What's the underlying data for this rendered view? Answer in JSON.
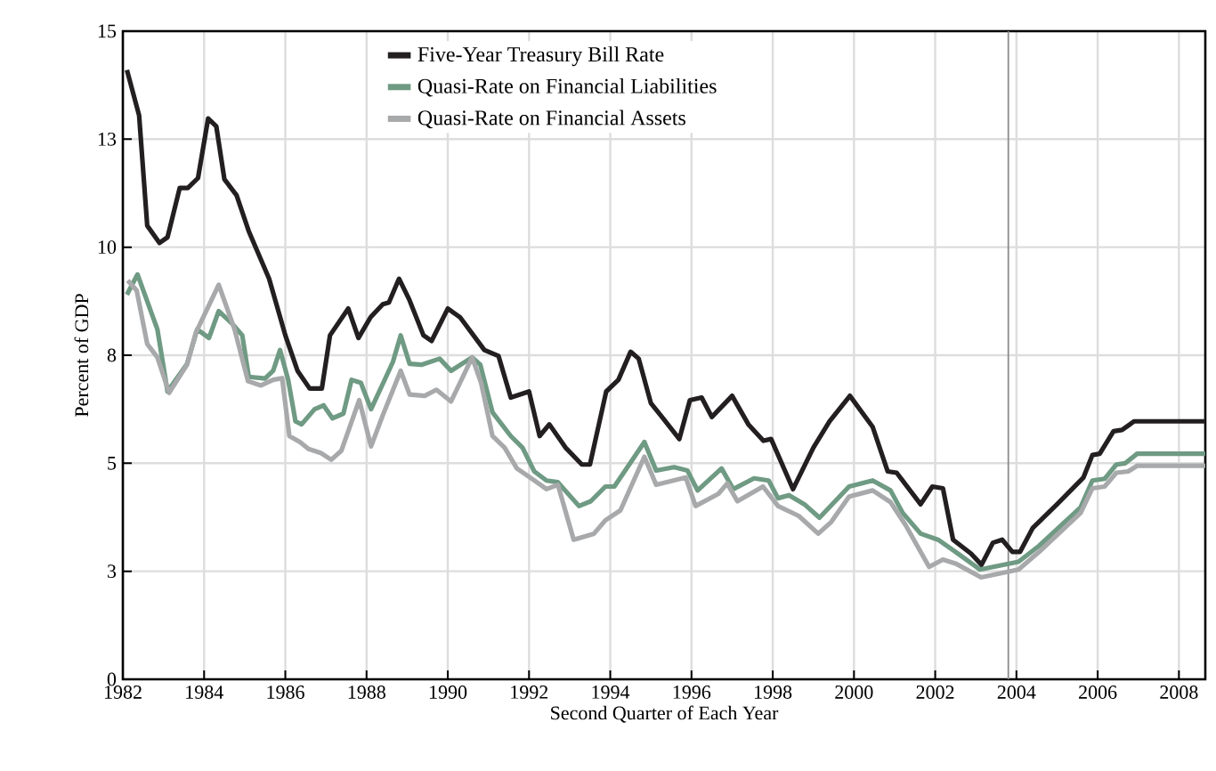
{
  "chart_data": {
    "type": "line",
    "xlabel": "Second Quarter of Each Year",
    "ylabel": "Percent of GDP",
    "xlim": [
      1982,
      2008.65
    ],
    "ylim": [
      0,
      15
    ],
    "xticks": [
      1982,
      1984,
      1986,
      1988,
      1990,
      1992,
      1994,
      1996,
      1998,
      2000,
      2002,
      2004,
      2006,
      2008
    ],
    "yticks": [
      0,
      {
        "value": 2.5,
        "label": "3"
      },
      5,
      {
        "value": 7.5,
        "label": "8"
      },
      10,
      {
        "value": 12.5,
        "label": "13"
      },
      15
    ],
    "grid": true,
    "legend": "top",
    "marker": "none",
    "line_style": "solid",
    "ref_lines": [
      {
        "axis": "x",
        "value": 2003.8,
        "label": null,
        "color": "#8c8c8c"
      }
    ],
    "series": [
      {
        "name": "Five-Year Treasury Bill Rate",
        "color": "#231f20",
        "x": [
          1982.1,
          1982.4,
          1982.6,
          1982.9,
          1983.1,
          1983.4,
          1983.6,
          1983.85,
          1984.1,
          1984.3,
          1984.5,
          1984.8,
          1985.1,
          1985.6,
          1986.0,
          1986.3,
          1986.6,
          1986.9,
          1987.1,
          1987.55,
          1987.8,
          1988.1,
          1988.4,
          1988.55,
          1988.8,
          1989.05,
          1989.4,
          1989.6,
          1990.0,
          1990.3,
          1990.9,
          1991.25,
          1991.55,
          1992.0,
          1992.26,
          1992.5,
          1992.9,
          1993.3,
          1993.5,
          1993.9,
          1994.2,
          1994.5,
          1994.7,
          1995.0,
          1995.3,
          1995.7,
          1995.96,
          1996.25,
          1996.5,
          1997.0,
          1997.4,
          1997.77,
          1997.96,
          1998.5,
          1999.0,
          1999.4,
          1999.9,
          2000.46,
          2000.83,
          2001.05,
          2001.64,
          2001.93,
          2002.19,
          2002.44,
          2002.88,
          2003.14,
          2003.42,
          2003.65,
          2003.9,
          2004.09,
          2004.4,
          2005.0,
          2005.65,
          2005.87,
          2006.05,
          2006.39,
          2006.6,
          2006.9,
          2008.65
        ],
        "values": [
          14.1,
          13.05,
          10.5,
          10.1,
          10.23,
          11.37,
          11.37,
          11.6,
          12.98,
          12.8,
          11.57,
          11.2,
          10.37,
          9.27,
          7.96,
          7.14,
          6.73,
          6.73,
          7.96,
          8.58,
          7.9,
          8.38,
          8.68,
          8.72,
          9.27,
          8.79,
          7.96,
          7.83,
          8.58,
          8.38,
          7.62,
          7.48,
          6.52,
          6.66,
          5.63,
          5.9,
          5.36,
          4.97,
          4.97,
          6.66,
          6.93,
          7.58,
          7.42,
          6.39,
          6.04,
          5.56,
          6.46,
          6.52,
          6.07,
          6.56,
          5.9,
          5.52,
          5.56,
          4.4,
          5.36,
          5.97,
          6.56,
          5.84,
          4.81,
          4.78,
          4.05,
          4.46,
          4.42,
          3.23,
          2.91,
          2.65,
          3.16,
          3.23,
          2.95,
          2.95,
          3.5,
          4.05,
          4.67,
          5.19,
          5.22,
          5.74,
          5.77,
          5.97,
          5.97
        ]
      },
      {
        "name": "Quasi-Rate on Financial Liabilities",
        "color": "#6f9a83",
        "x": [
          1982.1,
          1982.36,
          1982.85,
          1983.1,
          1983.58,
          1983.83,
          1984.12,
          1984.36,
          1984.68,
          1984.94,
          1985.1,
          1985.5,
          1985.7,
          1985.87,
          1986.07,
          1986.25,
          1986.4,
          1986.72,
          1986.94,
          1987.16,
          1987.43,
          1987.63,
          1987.86,
          1988.11,
          1988.48,
          1988.65,
          1988.84,
          1989.06,
          1989.35,
          1989.8,
          1990.08,
          1990.6,
          1990.8,
          1991.1,
          1991.55,
          1991.84,
          1992.13,
          1992.43,
          1992.71,
          1993.23,
          1993.52,
          1993.88,
          1994.1,
          1994.84,
          1995.13,
          1995.57,
          1995.9,
          1996.15,
          1996.74,
          1997.03,
          1997.54,
          1997.9,
          1998.13,
          1998.4,
          1998.78,
          1999.15,
          1999.88,
          2000.46,
          2000.9,
          2001.2,
          2001.64,
          2002.07,
          2002.5,
          2003.1,
          2004.05,
          2004.56,
          2005.58,
          2005.87,
          2006.17,
          2006.46,
          2006.68,
          2006.97,
          2008.65
        ],
        "values": [
          8.9,
          9.37,
          8.1,
          6.66,
          7.3,
          8.1,
          7.9,
          8.52,
          8.24,
          7.96,
          7.0,
          6.96,
          7.14,
          7.62,
          6.93,
          5.97,
          5.9,
          6.25,
          6.34,
          6.04,
          6.15,
          6.93,
          6.86,
          6.25,
          7.0,
          7.35,
          7.96,
          7.3,
          7.28,
          7.42,
          7.14,
          7.45,
          7.28,
          6.18,
          5.63,
          5.36,
          4.81,
          4.6,
          4.56,
          4.01,
          4.12,
          4.46,
          4.46,
          5.49,
          4.83,
          4.91,
          4.83,
          4.37,
          4.88,
          4.4,
          4.65,
          4.6,
          4.19,
          4.26,
          4.05,
          3.74,
          4.46,
          4.6,
          4.37,
          3.85,
          3.37,
          3.23,
          2.95,
          2.54,
          2.72,
          3.09,
          3.98,
          4.6,
          4.64,
          4.97,
          5.0,
          5.22,
          5.22
        ]
      },
      {
        "name": "Quasi-Rate on Financial Assets",
        "color": "#a8a9ab",
        "x": [
          1982.12,
          1982.34,
          1982.6,
          1982.85,
          1983.14,
          1983.58,
          1983.8,
          1984.36,
          1984.75,
          1985.08,
          1985.4,
          1985.7,
          1985.92,
          1986.1,
          1986.36,
          1986.57,
          1986.87,
          1987.13,
          1987.38,
          1987.82,
          1988.11,
          1988.4,
          1988.84,
          1989.06,
          1989.43,
          1989.72,
          1990.08,
          1990.6,
          1990.82,
          1991.1,
          1991.4,
          1991.7,
          1992.13,
          1992.43,
          1992.71,
          1993.1,
          1993.6,
          1993.88,
          1994.25,
          1994.84,
          1995.13,
          1995.86,
          1996.1,
          1996.66,
          1996.88,
          1997.13,
          1997.76,
          1998.13,
          1998.64,
          1999.12,
          1999.44,
          1999.88,
          2000.46,
          2000.9,
          2001.27,
          2001.85,
          2002.19,
          2002.5,
          2003.13,
          2004.05,
          2004.56,
          2005.58,
          2005.87,
          2006.17,
          2006.46,
          2006.75,
          2006.97,
          2008.65
        ],
        "values": [
          9.23,
          9.0,
          7.76,
          7.45,
          6.63,
          7.28,
          8.03,
          9.13,
          8.1,
          6.9,
          6.8,
          6.93,
          6.97,
          5.63,
          5.49,
          5.33,
          5.24,
          5.08,
          5.29,
          6.46,
          5.39,
          6.11,
          7.14,
          6.59,
          6.56,
          6.7,
          6.43,
          7.45,
          6.86,
          5.63,
          5.36,
          4.88,
          4.6,
          4.4,
          4.5,
          3.23,
          3.37,
          3.68,
          3.91,
          5.15,
          4.5,
          4.67,
          4.01,
          4.29,
          4.53,
          4.12,
          4.46,
          4.01,
          3.78,
          3.37,
          3.64,
          4.23,
          4.37,
          4.1,
          3.57,
          2.6,
          2.77,
          2.68,
          2.36,
          2.54,
          2.95,
          3.85,
          4.42,
          4.46,
          4.78,
          4.81,
          4.94,
          4.94
        ]
      }
    ]
  }
}
